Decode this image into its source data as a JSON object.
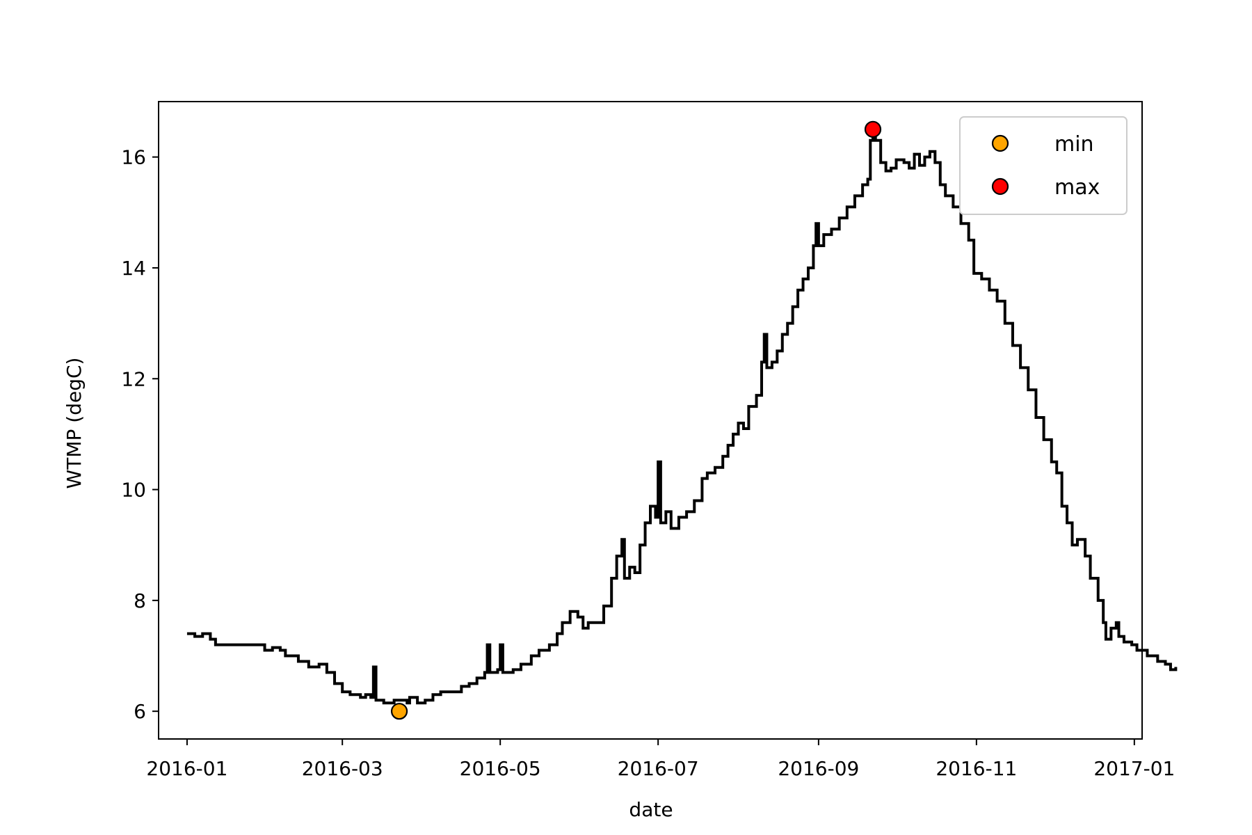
{
  "chart_data": {
    "type": "line",
    "xlabel": "date",
    "ylabel": "WTMP (degC)",
    "x_axis": {
      "type": "date",
      "range": [
        "2015-12-21",
        "2017-01-04"
      ],
      "ticks": [
        "2016-01",
        "2016-03",
        "2016-05",
        "2016-07",
        "2016-09",
        "2016-11",
        "2017-01"
      ]
    },
    "y_axis": {
      "range": [
        5.5,
        17.0
      ],
      "ticks": [
        6,
        8,
        10,
        12,
        14,
        16
      ]
    },
    "grid": false,
    "legend_position": "top-right",
    "series": [
      {
        "color": "#000000",
        "line_style": "step",
        "points": [
          [
            "2016-01-01",
            7.4
          ],
          [
            "2016-01-04",
            7.35
          ],
          [
            "2016-01-07",
            7.4
          ],
          [
            "2016-01-10",
            7.3
          ],
          [
            "2016-01-12",
            7.2
          ],
          [
            "2016-01-20",
            7.2
          ],
          [
            "2016-01-28",
            7.2
          ],
          [
            "2016-01-31",
            7.1
          ],
          [
            "2016-02-03",
            7.15
          ],
          [
            "2016-02-06",
            7.1
          ],
          [
            "2016-02-08",
            7.0
          ],
          [
            "2016-02-13",
            6.9
          ],
          [
            "2016-02-17",
            6.8
          ],
          [
            "2016-02-21",
            6.85
          ],
          [
            "2016-02-24",
            6.7
          ],
          [
            "2016-02-27",
            6.5
          ],
          [
            "2016-03-01",
            6.35
          ],
          [
            "2016-03-04",
            6.3
          ],
          [
            "2016-03-08",
            6.25
          ],
          [
            "2016-03-10",
            6.3
          ],
          [
            "2016-03-12",
            6.25
          ],
          [
            "2016-03-13",
            6.8
          ],
          [
            "2016-03-14",
            6.2
          ],
          [
            "2016-03-17",
            6.15
          ],
          [
            "2016-03-21",
            6.2
          ],
          [
            "2016-03-24",
            6.2
          ],
          [
            "2016-03-26",
            6.15
          ],
          [
            "2016-03-27",
            6.25
          ],
          [
            "2016-03-30",
            6.15
          ],
          [
            "2016-04-02",
            6.2
          ],
          [
            "2016-04-05",
            6.3
          ],
          [
            "2016-04-08",
            6.35
          ],
          [
            "2016-04-12",
            6.35
          ],
          [
            "2016-04-16",
            6.45
          ],
          [
            "2016-04-19",
            6.5
          ],
          [
            "2016-04-22",
            6.6
          ],
          [
            "2016-04-25",
            6.7
          ],
          [
            "2016-04-26",
            7.2
          ],
          [
            "2016-04-27",
            6.7
          ],
          [
            "2016-04-30",
            6.75
          ],
          [
            "2016-05-01",
            7.2
          ],
          [
            "2016-05-02",
            6.7
          ],
          [
            "2016-05-06",
            6.75
          ],
          [
            "2016-05-09",
            6.85
          ],
          [
            "2016-05-13",
            7.0
          ],
          [
            "2016-05-16",
            7.1
          ],
          [
            "2016-05-20",
            7.2
          ],
          [
            "2016-05-23",
            7.4
          ],
          [
            "2016-05-25",
            7.6
          ],
          [
            "2016-05-28",
            7.8
          ],
          [
            "2016-05-31",
            7.7
          ],
          [
            "2016-06-02",
            7.5
          ],
          [
            "2016-06-04",
            7.6
          ],
          [
            "2016-06-07",
            7.6
          ],
          [
            "2016-06-10",
            7.9
          ],
          [
            "2016-06-13",
            8.4
          ],
          [
            "2016-06-15",
            8.8
          ],
          [
            "2016-06-17",
            9.1
          ],
          [
            "2016-06-18",
            8.4
          ],
          [
            "2016-06-20",
            8.6
          ],
          [
            "2016-06-22",
            8.5
          ],
          [
            "2016-06-24",
            9.0
          ],
          [
            "2016-06-26",
            9.4
          ],
          [
            "2016-06-28",
            9.7
          ],
          [
            "2016-06-30",
            9.5
          ],
          [
            "2016-07-01",
            10.5
          ],
          [
            "2016-07-02",
            9.4
          ],
          [
            "2016-07-04",
            9.6
          ],
          [
            "2016-07-06",
            9.3
          ],
          [
            "2016-07-09",
            9.5
          ],
          [
            "2016-07-12",
            9.6
          ],
          [
            "2016-07-15",
            9.8
          ],
          [
            "2016-07-18",
            10.2
          ],
          [
            "2016-07-20",
            10.3
          ],
          [
            "2016-07-23",
            10.4
          ],
          [
            "2016-07-26",
            10.6
          ],
          [
            "2016-07-28",
            10.8
          ],
          [
            "2016-07-30",
            11.0
          ],
          [
            "2016-08-01",
            11.2
          ],
          [
            "2016-08-03",
            11.1
          ],
          [
            "2016-08-05",
            11.5
          ],
          [
            "2016-08-08",
            11.7
          ],
          [
            "2016-08-10",
            12.3
          ],
          [
            "2016-08-11",
            12.8
          ],
          [
            "2016-08-12",
            12.2
          ],
          [
            "2016-08-14",
            12.3
          ],
          [
            "2016-08-16",
            12.5
          ],
          [
            "2016-08-18",
            12.8
          ],
          [
            "2016-08-20",
            13.0
          ],
          [
            "2016-08-22",
            13.3
          ],
          [
            "2016-08-24",
            13.6
          ],
          [
            "2016-08-26",
            13.8
          ],
          [
            "2016-08-28",
            14.0
          ],
          [
            "2016-08-30",
            14.4
          ],
          [
            "2016-08-31",
            14.8
          ],
          [
            "2016-09-01",
            14.4
          ],
          [
            "2016-09-03",
            14.6
          ],
          [
            "2016-09-06",
            14.7
          ],
          [
            "2016-09-09",
            14.9
          ],
          [
            "2016-09-12",
            15.1
          ],
          [
            "2016-09-15",
            15.3
          ],
          [
            "2016-09-18",
            15.5
          ],
          [
            "2016-09-20",
            15.6
          ],
          [
            "2016-09-21",
            16.3
          ],
          [
            "2016-09-22",
            16.5
          ],
          [
            "2016-09-23",
            16.3
          ],
          [
            "2016-09-25",
            15.9
          ],
          [
            "2016-09-27",
            15.75
          ],
          [
            "2016-09-29",
            15.8
          ],
          [
            "2016-10-01",
            15.95
          ],
          [
            "2016-10-04",
            15.9
          ],
          [
            "2016-10-06",
            15.8
          ],
          [
            "2016-10-08",
            16.05
          ],
          [
            "2016-10-10",
            15.85
          ],
          [
            "2016-10-12",
            16.0
          ],
          [
            "2016-10-14",
            16.1
          ],
          [
            "2016-10-16",
            15.9
          ],
          [
            "2016-10-18",
            15.5
          ],
          [
            "2016-10-20",
            15.3
          ],
          [
            "2016-10-23",
            15.1
          ],
          [
            "2016-10-26",
            14.8
          ],
          [
            "2016-10-29",
            14.5
          ],
          [
            "2016-10-31",
            13.9
          ],
          [
            "2016-11-03",
            13.8
          ],
          [
            "2016-11-06",
            13.6
          ],
          [
            "2016-11-09",
            13.4
          ],
          [
            "2016-11-12",
            13.0
          ],
          [
            "2016-11-15",
            12.6
          ],
          [
            "2016-11-18",
            12.2
          ],
          [
            "2016-11-21",
            11.8
          ],
          [
            "2016-11-24",
            11.3
          ],
          [
            "2016-11-27",
            10.9
          ],
          [
            "2016-11-30",
            10.5
          ],
          [
            "2016-12-02",
            10.3
          ],
          [
            "2016-12-04",
            9.7
          ],
          [
            "2016-12-06",
            9.4
          ],
          [
            "2016-12-08",
            9.0
          ],
          [
            "2016-12-10",
            9.1
          ],
          [
            "2016-12-13",
            8.8
          ],
          [
            "2016-12-15",
            8.4
          ],
          [
            "2016-12-18",
            8.0
          ],
          [
            "2016-12-20",
            7.6
          ],
          [
            "2016-12-21",
            7.3
          ],
          [
            "2016-12-23",
            7.5
          ],
          [
            "2016-12-25",
            7.6
          ],
          [
            "2016-12-26",
            7.35
          ],
          [
            "2016-12-28",
            7.25
          ],
          [
            "2016-12-31",
            7.2
          ],
          [
            "2017-01-02",
            7.1
          ],
          [
            "2017-01-06",
            7.0
          ],
          [
            "2017-01-10",
            6.9
          ],
          [
            "2017-01-13",
            6.85
          ],
          [
            "2017-01-15",
            6.75
          ],
          [
            "2017-01-17",
            6.8
          ]
        ]
      }
    ],
    "markers": [
      {
        "name": "min",
        "date": "2016-03-23",
        "value": 6.0,
        "color": "#ffa500"
      },
      {
        "name": "max",
        "date": "2016-09-22",
        "value": 16.5,
        "color": "#ff0000"
      }
    ]
  }
}
